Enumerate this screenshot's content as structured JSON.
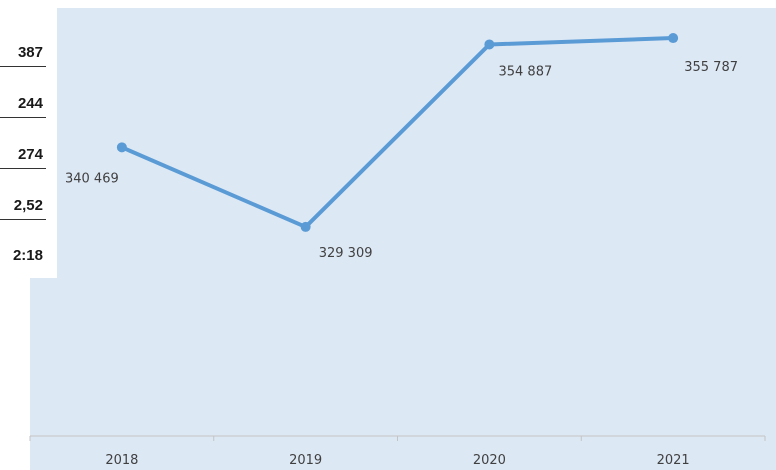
{
  "side_panel": {
    "values": [
      "387",
      "244",
      "274",
      "2,52",
      "2:18"
    ]
  },
  "chart_data": {
    "type": "line",
    "categories": [
      "2018",
      "2019",
      "2020",
      "2021"
    ],
    "series": [
      {
        "values": [
          340469,
          329309,
          354887,
          355787
        ],
        "labels": [
          "340 469",
          "329 309",
          "354 887",
          "355 787"
        ],
        "color": "#5b9bd5"
      }
    ],
    "title": "",
    "xlabel": "",
    "ylabel": "",
    "ylim": [
      300000,
      360000
    ],
    "grid": false,
    "legend": "none",
    "plot_background": "#dde8f5"
  }
}
